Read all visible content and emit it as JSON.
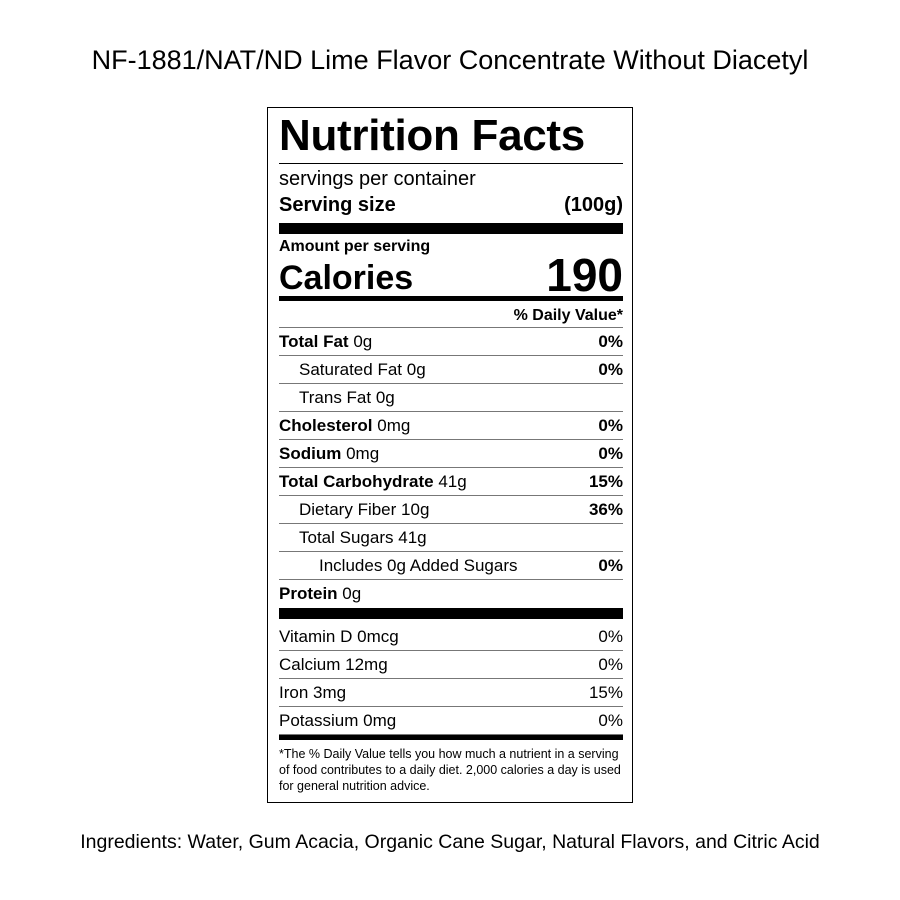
{
  "title": "NF-1881/NAT/ND Lime Flavor Concentrate Without Diacetyl",
  "label": {
    "heading": "Nutrition Facts",
    "servings": "servings per container",
    "serving_size_label": "Serving size",
    "serving_size": "(100g)",
    "amount_per_serving": "Amount per serving",
    "calories_label": "Calories",
    "calories": "190",
    "daily_value_header": "% Daily Value*",
    "nutrients": [
      {
        "name": "Total Fat",
        "amount": "0g",
        "dv": "0%"
      },
      {
        "name": "Saturated Fat",
        "amount": "0g",
        "dv": "0%"
      },
      {
        "name": "Trans Fat",
        "amount": "0g"
      },
      {
        "name": "Cholesterol",
        "amount": "0mg",
        "dv": "0%"
      },
      {
        "name": "Sodium",
        "amount": "0mg",
        "dv": "0%"
      },
      {
        "name": "Total Carbohydrate",
        "amount": "41g",
        "dv": "15%"
      },
      {
        "name": "Dietary Fiber",
        "amount": "10g",
        "dv": "36%"
      },
      {
        "name": "Total Sugars",
        "amount": "41g"
      },
      {
        "name": "Includes 0g Added Sugars",
        "dv": "0%"
      },
      {
        "name": "Protein",
        "amount": "0g"
      }
    ],
    "vitamins": [
      {
        "name": "Vitamin D",
        "amount": "0mcg",
        "dv": "0%"
      },
      {
        "name": "Calcium",
        "amount": "12mg",
        "dv": "0%"
      },
      {
        "name": "Iron",
        "amount": "3mg",
        "dv": "15%"
      },
      {
        "name": "Potassium",
        "amount": "0mg",
        "dv": "0%"
      }
    ],
    "footnote": "*The % Daily Value tells you how much a nutrient in a serving of food contributes to a daily diet. 2,000 calories a day is used for general nutrition advice."
  },
  "ingredients": "Ingredients: Water, Gum Acacia, Organic Cane Sugar, Natural Flavors, and Citric Acid"
}
